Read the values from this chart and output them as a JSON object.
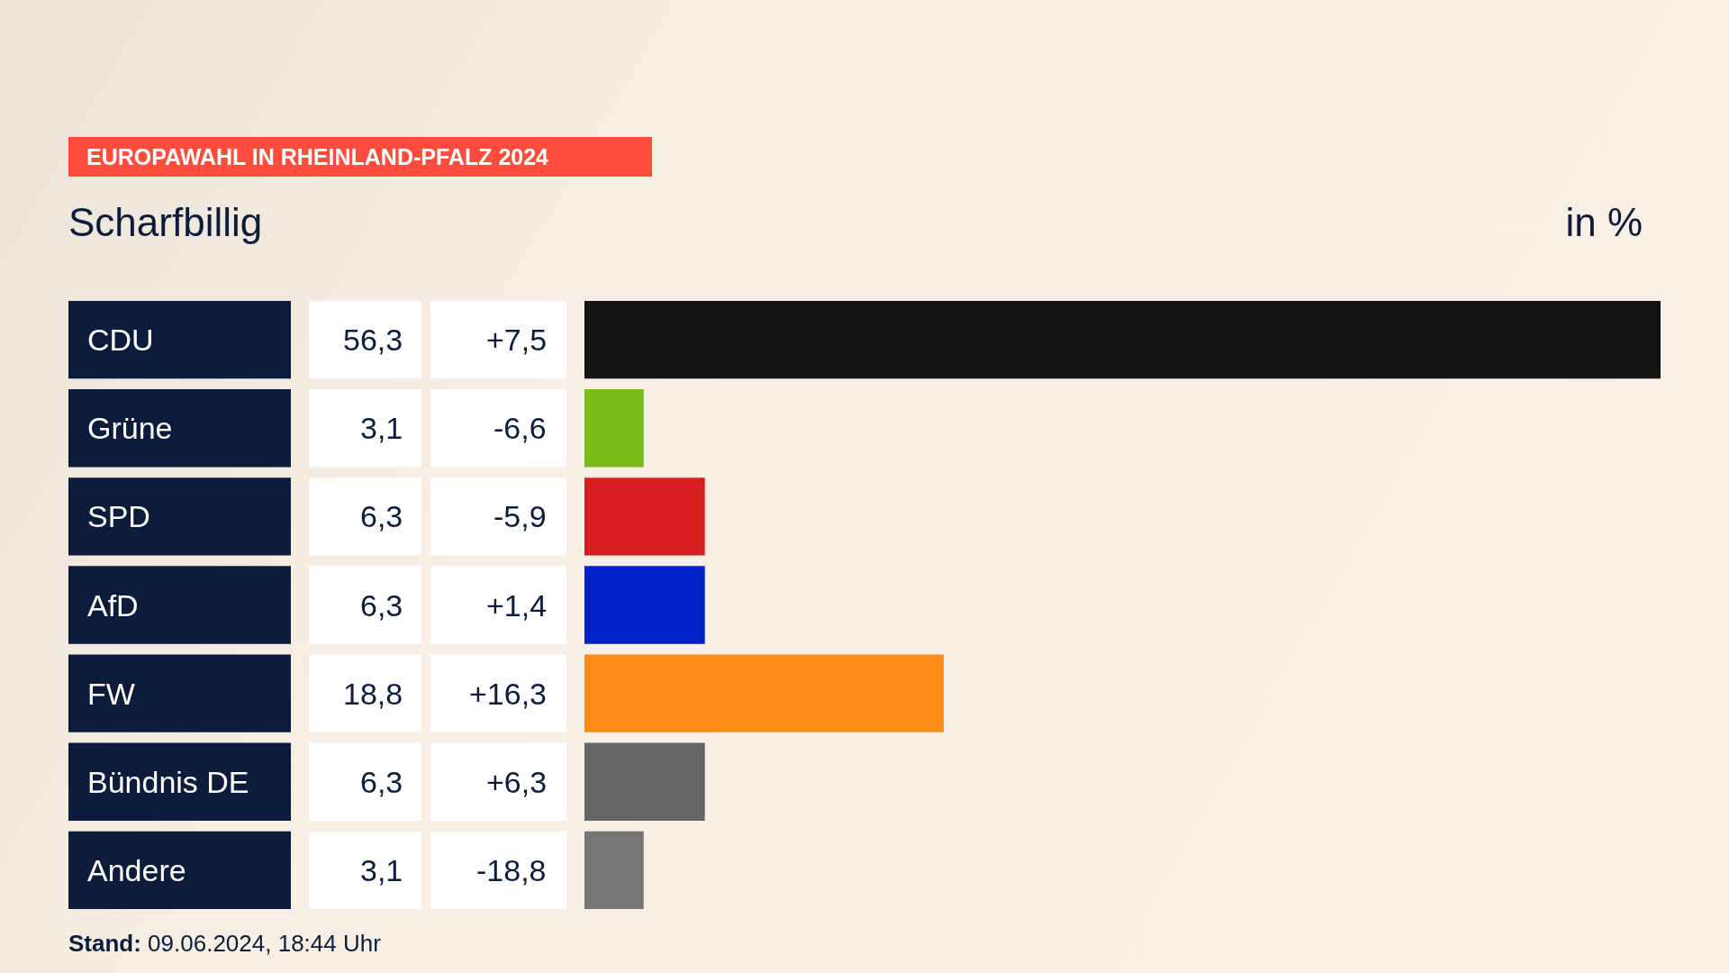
{
  "chart_data": {
    "type": "bar",
    "orientation": "horizontal",
    "title": "EUROPAWAHL IN RHEINLAND-PFALZ 2024",
    "subtitle": "Scharfbillig",
    "xlabel": "in %",
    "categories": [
      "CDU",
      "Grüne",
      "SPD",
      "AfD",
      "FW",
      "Bündnis DE",
      "Andere"
    ],
    "values": [
      56.3,
      3.1,
      6.3,
      6.3,
      18.8,
      6.3,
      3.1
    ],
    "value_labels": [
      "56,3",
      "3,1",
      "6,3",
      "6,3",
      "18,8",
      "6,3",
      "3,1"
    ],
    "colors": [
      "#141414",
      "#78bc1b",
      "#d71f1f",
      "#0021c8",
      "#ff8c17",
      "#666666",
      "#767676"
    ],
    "xlim": [
      0,
      56.3
    ],
    "annotations": [
      "+7,5",
      "-6,6",
      "-5,9",
      "+1,4",
      "+16,3",
      "+6,3",
      "-18,8",
      "Stand: 09.06.2024, 18:44 Uhr"
    ]
  }
}
